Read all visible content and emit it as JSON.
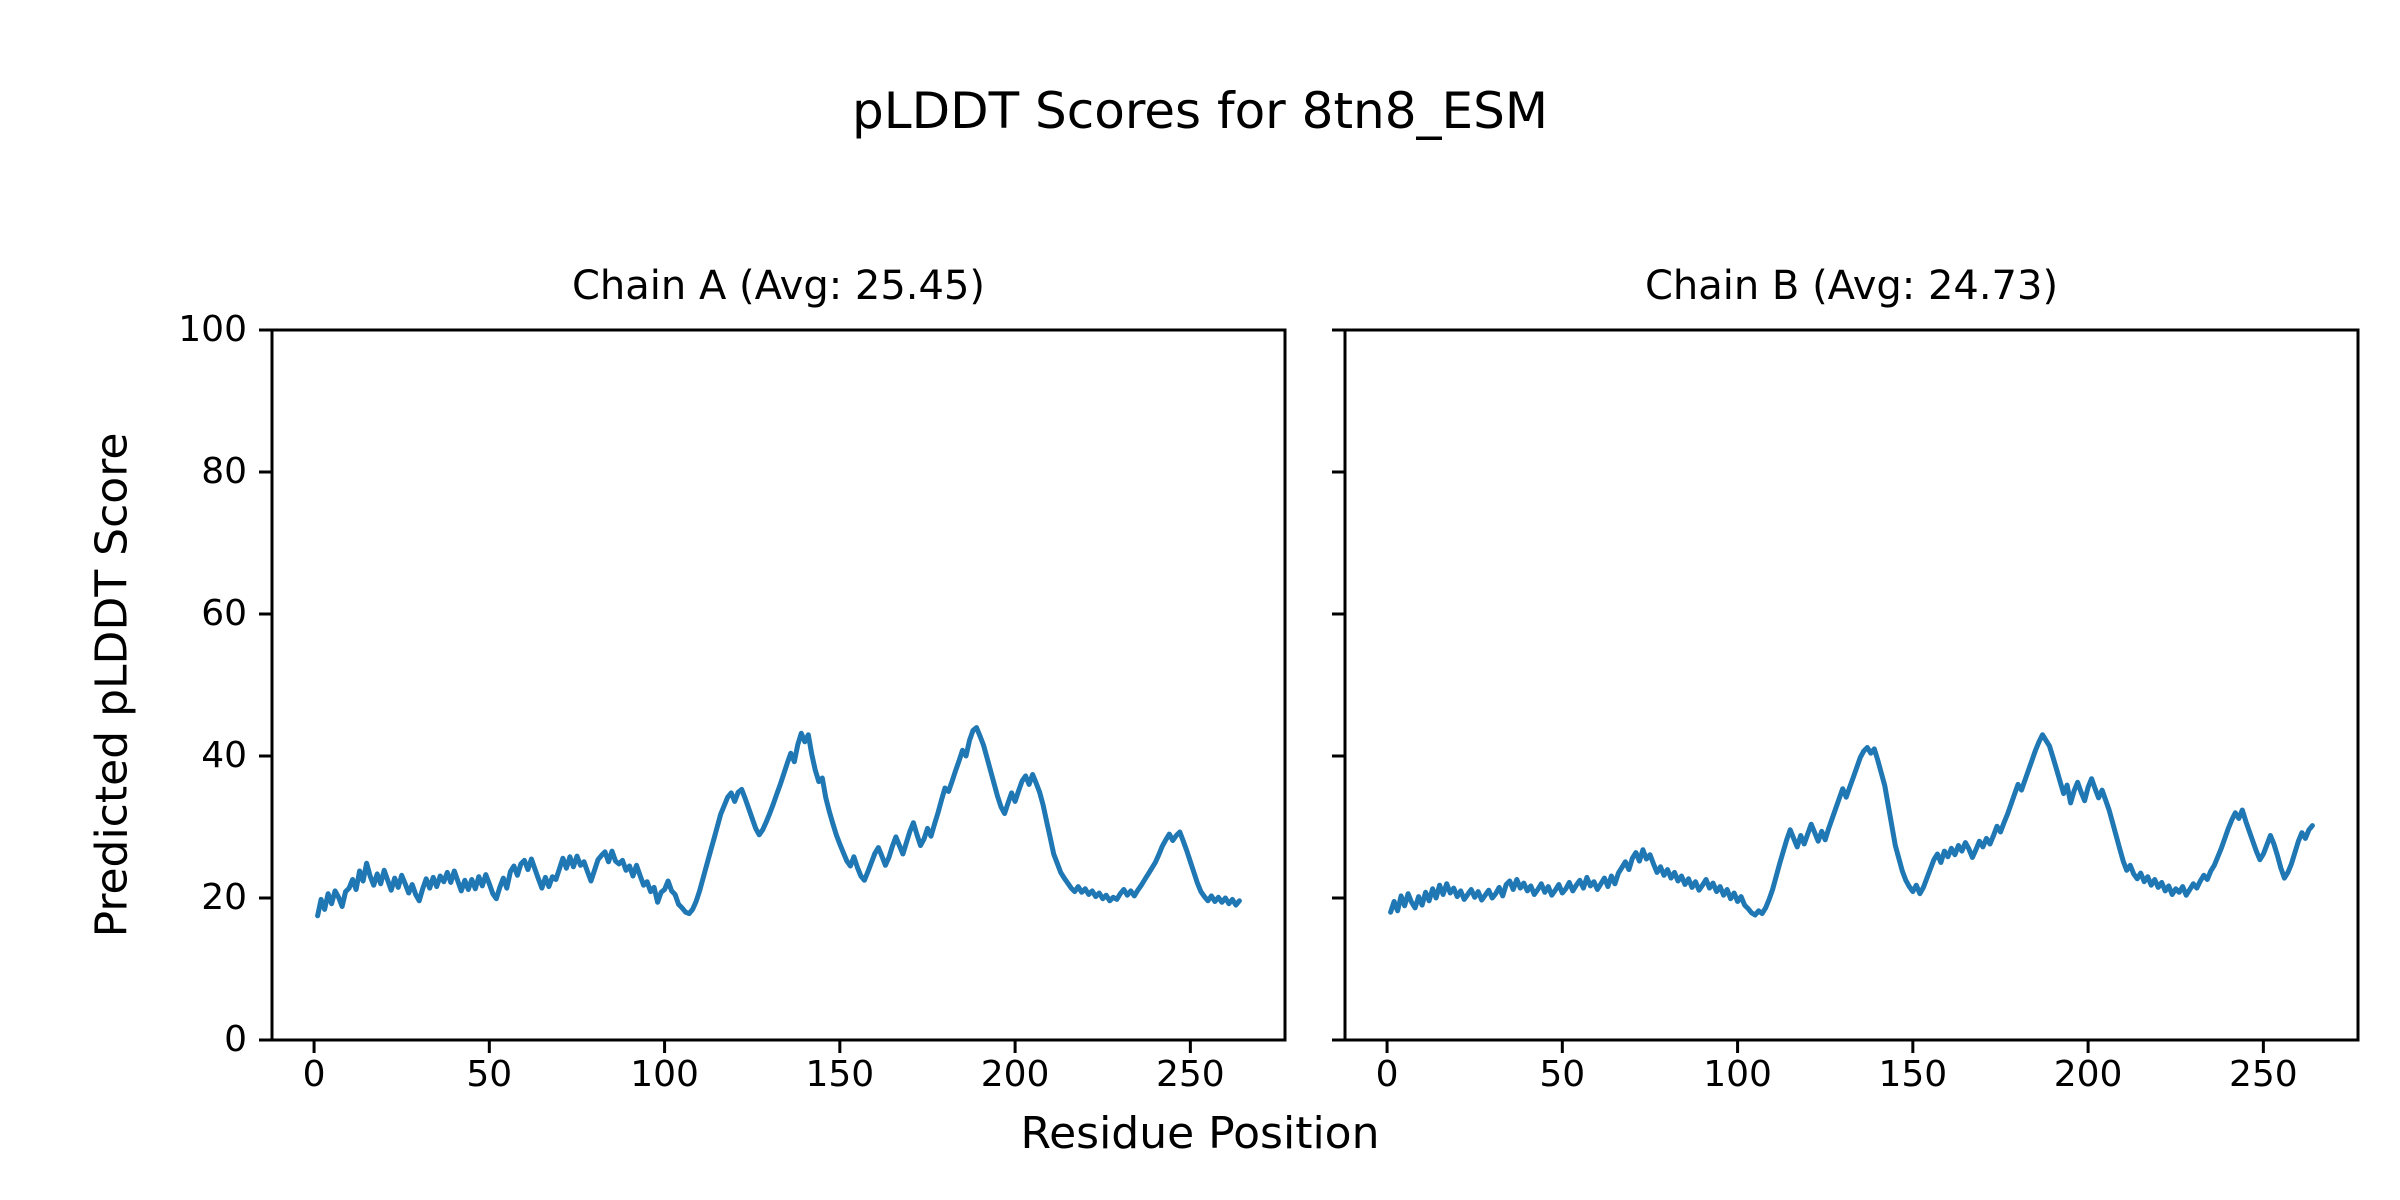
{
  "chart_data": {
    "type": "line",
    "suptitle": "pLDDT Scores for 8tn8_ESM",
    "xlabel": "Residue Position",
    "ylabel": "Predicted pLDDT Score",
    "line_color": "#1f77b4",
    "axis_color": "#000000",
    "background_color": "#ffffff",
    "grid": false,
    "legend": false,
    "ylim": [
      0,
      100
    ],
    "xlim": [
      -12,
      277
    ],
    "yticks": [
      0,
      20,
      40,
      60,
      80,
      100
    ],
    "xticks": [
      0,
      50,
      100,
      150,
      200,
      250
    ],
    "subplots": [
      {
        "title": "Chain A (Avg: 25.45)",
        "chain": "A",
        "avg": 25.45,
        "x_start": 1,
        "values": [
          17.5,
          19.8,
          18.4,
          20.6,
          19.2,
          21.0,
          20.1,
          18.8,
          20.9,
          21.4,
          22.6,
          21.2,
          23.8,
          22.4,
          24.9,
          23.1,
          21.8,
          23.4,
          22.0,
          23.9,
          22.5,
          21.1,
          22.8,
          21.5,
          23.2,
          22.0,
          20.7,
          21.9,
          20.5,
          19.6,
          21.3,
          22.7,
          21.4,
          22.9,
          21.6,
          23.1,
          22.3,
          23.6,
          22.2,
          23.8,
          22.4,
          21.0,
          22.5,
          21.2,
          22.6,
          21.3,
          23.0,
          21.7,
          23.3,
          22.0,
          20.6,
          19.9,
          21.5,
          22.8,
          21.4,
          23.7,
          24.5,
          23.2,
          24.8,
          25.3,
          24.0,
          25.5,
          24.1,
          22.7,
          21.4,
          22.9,
          21.6,
          23.0,
          22.6,
          24.1,
          25.6,
          24.2,
          25.8,
          24.4,
          25.9,
          24.6,
          25.1,
          23.7,
          22.4,
          23.9,
          25.4,
          26.0,
          26.5,
          25.1,
          26.6,
          25.2,
          24.8,
          25.3,
          23.9,
          24.5,
          23.1,
          24.6,
          23.2,
          21.8,
          22.3,
          20.9,
          21.5,
          19.4,
          20.8,
          21.2,
          22.4,
          21.0,
          20.5,
          19.1,
          18.6,
          18.0,
          17.8,
          18.4,
          19.5,
          21.0,
          22.8,
          24.6,
          26.4,
          28.2,
          30.0,
          31.8,
          33.0,
          34.2,
          34.8,
          33.6,
          34.9,
          35.3,
          34.0,
          32.6,
          31.2,
          29.8,
          28.9,
          29.6,
          30.7,
          31.9,
          33.2,
          34.6,
          36.0,
          37.5,
          39.0,
          40.4,
          39.2,
          41.6,
          43.2,
          42.0,
          43.0,
          40.2,
          38.0,
          36.4,
          36.9,
          34.1,
          32.2,
          30.5,
          28.9,
          27.6,
          26.4,
          25.2,
          24.5,
          25.8,
          24.3,
          23.1,
          22.5,
          23.7,
          25.0,
          26.3,
          27.1,
          25.9,
          24.6,
          25.7,
          27.3,
          28.6,
          27.4,
          26.2,
          27.8,
          29.4,
          30.6,
          28.9,
          27.4,
          28.3,
          29.8,
          28.7,
          30.4,
          32.0,
          33.8,
          35.5,
          35.0,
          36.4,
          37.9,
          39.3,
          40.8,
          40.0,
          42.2,
          43.6,
          44.0,
          42.8,
          41.5,
          39.7,
          37.9,
          36.1,
          34.3,
          32.8,
          31.9,
          33.4,
          34.8,
          33.6,
          35.1,
          36.5,
          37.2,
          36.0,
          37.4,
          36.2,
          34.9,
          33.1,
          30.8,
          28.5,
          26.2,
          24.9,
          23.6,
          22.8,
          22.1,
          21.4,
          20.9,
          21.6,
          20.8,
          21.3,
          20.5,
          21.0,
          20.2,
          20.7,
          19.9,
          20.4,
          19.6,
          20.1,
          19.8,
          20.6,
          21.2,
          20.4,
          21.0,
          20.3,
          21.1,
          21.8,
          22.6,
          23.4,
          24.2,
          25.0,
          26.1,
          27.3,
          28.2,
          29.0,
          28.1,
          28.8,
          29.3,
          28.0,
          26.6,
          25.1,
          23.6,
          22.1,
          20.9,
          20.2,
          19.6,
          20.3,
          19.5,
          20.1,
          19.4,
          20.0,
          19.2,
          19.8,
          19.0,
          19.6
        ]
      },
      {
        "title": "Chain B (Avg: 24.73)",
        "chain": "B",
        "avg": 24.73,
        "x_start": 1,
        "values": [
          18.0,
          19.5,
          18.2,
          20.3,
          18.9,
          20.6,
          19.4,
          18.6,
          20.2,
          19.0,
          20.8,
          19.6,
          21.3,
          20.0,
          21.8,
          20.5,
          22.0,
          20.7,
          21.4,
          20.2,
          21.0,
          19.8,
          20.5,
          21.2,
          20.1,
          20.9,
          19.7,
          20.4,
          21.1,
          20.0,
          20.6,
          21.5,
          20.3,
          21.9,
          22.4,
          21.2,
          22.6,
          21.4,
          22.1,
          21.0,
          21.7,
          20.5,
          21.2,
          22.0,
          20.8,
          21.6,
          20.4,
          21.1,
          21.9,
          20.7,
          21.3,
          22.2,
          21.0,
          21.8,
          22.5,
          21.4,
          22.9,
          21.7,
          22.3,
          21.2,
          22.0,
          22.8,
          21.6,
          23.1,
          22.0,
          23.5,
          24.3,
          25.1,
          24.0,
          25.6,
          26.4,
          25.2,
          26.8,
          25.5,
          26.1,
          24.8,
          23.6,
          24.4,
          23.2,
          24.0,
          22.8,
          23.6,
          22.4,
          23.1,
          21.9,
          22.7,
          21.5,
          22.3,
          21.1,
          21.8,
          22.6,
          21.4,
          22.1,
          20.9,
          21.6,
          20.4,
          21.2,
          19.9,
          20.7,
          19.5,
          20.2,
          19.0,
          18.5,
          17.9,
          17.6,
          18.2,
          17.8,
          18.6,
          19.8,
          21.2,
          23.0,
          24.8,
          26.5,
          28.2,
          29.6,
          28.4,
          27.2,
          28.8,
          27.6,
          29.0,
          30.4,
          29.2,
          28.0,
          29.4,
          28.2,
          29.8,
          31.2,
          32.6,
          34.0,
          35.4,
          34.2,
          35.6,
          37.0,
          38.4,
          39.8,
          40.7,
          41.2,
          40.4,
          41.0,
          39.4,
          37.6,
          35.8,
          33.0,
          30.2,
          27.4,
          25.6,
          23.8,
          22.5,
          21.6,
          20.9,
          21.8,
          20.6,
          21.5,
          22.8,
          24.1,
          25.4,
          26.2,
          25.0,
          26.6,
          25.8,
          27.0,
          26.1,
          27.4,
          26.6,
          27.8,
          26.9,
          25.7,
          26.8,
          28.0,
          27.2,
          28.4,
          27.6,
          28.8,
          30.1,
          29.3,
          30.6,
          31.8,
          33.2,
          34.6,
          36.0,
          35.2,
          36.6,
          38.0,
          39.4,
          40.8,
          42.0,
          43.0,
          42.2,
          41.4,
          39.8,
          38.1,
          36.4,
          34.7,
          35.9,
          33.4,
          35.1,
          36.3,
          34.9,
          33.7,
          35.6,
          36.8,
          35.4,
          34.1,
          35.2,
          33.8,
          32.4,
          30.6,
          28.8,
          27.0,
          25.2,
          23.9,
          24.6,
          23.4,
          22.7,
          23.5,
          22.3,
          23.0,
          21.8,
          22.6,
          21.5,
          22.2,
          21.0,
          21.7,
          20.5,
          21.3,
          20.8,
          21.6,
          20.4,
          21.2,
          22.0,
          21.4,
          22.4,
          23.2,
          22.6,
          23.8,
          24.6,
          25.8,
          27.0,
          28.4,
          29.8,
          31.0,
          32.0,
          31.2,
          32.4,
          30.8,
          29.4,
          28.0,
          26.6,
          25.4,
          26.2,
          27.5,
          28.8,
          27.6,
          26.0,
          24.2,
          22.8,
          23.6,
          24.8,
          26.4,
          28.0,
          29.2,
          28.4,
          29.6,
          30.2
        ]
      }
    ]
  }
}
